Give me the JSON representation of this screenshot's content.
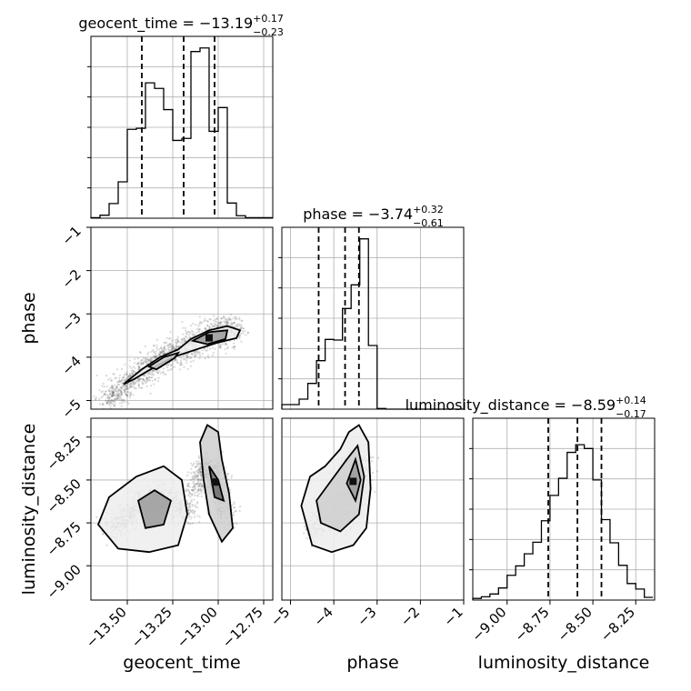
{
  "chart_data": {
    "type": "corner",
    "grid": true,
    "parameters": [
      "geocent_time",
      "phase",
      "luminosity_distance"
    ],
    "axes": {
      "geocent_time": {
        "range": [
          -13.7,
          -12.7
        ],
        "ticks": [
          -13.5,
          -13.25,
          -13.0,
          -12.75
        ],
        "tick_labels": [
          "−13.50",
          "−13.25",
          "−13.00",
          "−12.75"
        ],
        "xlabel": "geocent_time"
      },
      "phase": {
        "range": [
          -5.2,
          -1.0
        ],
        "ticks": [
          -5,
          -4,
          -3,
          -2,
          -1
        ],
        "tick_labels": [
          "−5",
          "−4",
          "−3",
          "−2",
          "−1"
        ],
        "xlabel": "phase",
        "ylabel": "phase"
      },
      "luminosity_distance": {
        "range": [
          -9.2,
          -8.14
        ],
        "ticks": [
          -9.0,
          -8.75,
          -8.5,
          -8.25
        ],
        "tick_labels": [
          "−9.00",
          "−8.75",
          "−8.50",
          "−8.25"
        ],
        "xlabel": "luminosity_distance",
        "ylabel": "luminosity_distance"
      }
    },
    "diagonal": [
      {
        "param": "geocent_time",
        "title_main": "geocent_time = −13.19",
        "title_sup": "+0.17",
        "title_sub": "−0.23",
        "quantiles": [
          -13.42,
          -13.19,
          -13.02
        ],
        "bins": [
          -13.7,
          -13.65,
          -13.6,
          -13.55,
          -13.5,
          -13.45,
          -13.4,
          -13.35,
          -13.3,
          -13.25,
          -13.2,
          -13.15,
          -13.1,
          -13.05,
          -13.0,
          -12.95,
          -12.9,
          -12.85,
          -12.8,
          -12.75,
          -12.7
        ],
        "counts": [
          1,
          6,
          29,
          72,
          176,
          178,
          268,
          257,
          215,
          154,
          158,
          330,
          337,
          172,
          219,
          30,
          5,
          1,
          1,
          1
        ],
        "ymax": 360
      },
      {
        "param": "phase",
        "title_main": "phase = −3.74",
        "title_sup": "+0.32",
        "title_sub": "−0.61",
        "quantiles": [
          -4.35,
          -3.74,
          -3.42
        ],
        "bins": [
          -5.2,
          -5.0,
          -4.8,
          -4.6,
          -4.4,
          -4.2,
          -4.0,
          -3.8,
          -3.6,
          -3.4,
          -3.2,
          -3.0,
          -2.8,
          -2.6,
          -2.4,
          -2.2,
          -2.0,
          -1.8,
          -1.6,
          -1.4,
          -1.2,
          -1.0
        ],
        "counts": [
          15,
          15,
          33,
          85,
          160,
          230,
          228,
          332,
          410,
          562,
          210,
          2,
          0,
          0,
          0,
          0,
          0,
          0,
          0,
          0,
          0
        ],
        "ymax": 600
      },
      {
        "param": "luminosity_distance",
        "title_main": "luminosity_distance = −8.59",
        "title_sup": "+0.14",
        "title_sub": "−0.17",
        "quantiles": [
          -8.76,
          -8.59,
          -8.45
        ],
        "bins": [
          -9.2,
          -9.15,
          -9.1,
          -9.05,
          -9.0,
          -8.95,
          -8.9,
          -8.85,
          -8.8,
          -8.75,
          -8.7,
          -8.65,
          -8.6,
          -8.55,
          -8.5,
          -8.45,
          -8.4,
          -8.35,
          -8.3,
          -8.25,
          -8.2,
          -8.15
        ],
        "counts": [
          3,
          6,
          11,
          22,
          45,
          62,
          84,
          105,
          144,
          190,
          221,
          268,
          282,
          275,
          218,
          146,
          104,
          63,
          30,
          20,
          5
        ],
        "ymax": 330
      }
    ],
    "pairs": [
      {
        "x": "geocent_time",
        "y": "phase",
        "ridge": [
          [
            -13.62,
            -4.95
          ],
          [
            -13.55,
            -4.8
          ],
          [
            -13.48,
            -4.55
          ],
          [
            -13.4,
            -4.3
          ],
          [
            -13.32,
            -4.05
          ],
          [
            -13.25,
            -3.9
          ],
          [
            -13.18,
            -3.75
          ],
          [
            -13.1,
            -3.6
          ],
          [
            -13.02,
            -3.45
          ],
          [
            -12.95,
            -3.35
          ],
          [
            -12.88,
            -3.45
          ]
        ],
        "contours": [
          [
            [
              -13.52,
              -4.62
            ],
            [
              -13.42,
              -4.28
            ],
            [
              -13.32,
              -4.0
            ],
            [
              -13.22,
              -3.82
            ],
            [
              -13.15,
              -3.58
            ],
            [
              -13.05,
              -3.38
            ],
            [
              -12.95,
              -3.28
            ],
            [
              -12.88,
              -3.38
            ],
            [
              -12.9,
              -3.56
            ],
            [
              -13.0,
              -3.66
            ],
            [
              -13.12,
              -3.82
            ],
            [
              -13.25,
              -4.0
            ],
            [
              -13.36,
              -4.25
            ],
            [
              -13.46,
              -4.5
            ],
            [
              -13.52,
              -4.62
            ]
          ],
          [
            [
              -13.38,
              -4.22
            ],
            [
              -13.3,
              -4.0
            ],
            [
              -13.22,
              -3.9
            ],
            [
              -13.24,
              -4.02
            ],
            [
              -13.34,
              -4.28
            ],
            [
              -13.38,
              -4.22
            ]
          ],
          [
            [
              -13.14,
              -3.62
            ],
            [
              -13.05,
              -3.42
            ],
            [
              -12.95,
              -3.38
            ],
            [
              -12.96,
              -3.58
            ],
            [
              -13.06,
              -3.7
            ],
            [
              -13.14,
              -3.62
            ]
          ]
        ]
      },
      {
        "x": "geocent_time",
        "y": "luminosity_distance",
        "ridge": [
          [
            -13.6,
            -8.78
          ],
          [
            -13.5,
            -8.72
          ],
          [
            -13.42,
            -8.62
          ],
          [
            -13.3,
            -8.6
          ],
          [
            -13.2,
            -8.7
          ],
          [
            -13.1,
            -8.5
          ],
          [
            -13.05,
            -8.4
          ],
          [
            -13.0,
            -8.55
          ],
          [
            -12.95,
            -8.75
          ]
        ],
        "contours": [
          [
            [
              -13.66,
              -8.76
            ],
            [
              -13.6,
              -8.6
            ],
            [
              -13.45,
              -8.48
            ],
            [
              -13.3,
              -8.42
            ],
            [
              -13.2,
              -8.5
            ],
            [
              -13.17,
              -8.7
            ],
            [
              -13.22,
              -8.88
            ],
            [
              -13.38,
              -8.92
            ],
            [
              -13.55,
              -8.9
            ],
            [
              -13.66,
              -8.76
            ]
          ],
          [
            [
              -13.1,
              -8.28
            ],
            [
              -13.06,
              -8.18
            ],
            [
              -13.0,
              -8.22
            ],
            [
              -12.98,
              -8.38
            ],
            [
              -12.94,
              -8.58
            ],
            [
              -12.92,
              -8.78
            ],
            [
              -12.98,
              -8.86
            ],
            [
              -13.05,
              -8.7
            ],
            [
              -13.08,
              -8.5
            ],
            [
              -13.1,
              -8.28
            ]
          ],
          [
            [
              -13.44,
              -8.62
            ],
            [
              -13.35,
              -8.56
            ],
            [
              -13.26,
              -8.62
            ],
            [
              -13.3,
              -8.76
            ],
            [
              -13.4,
              -8.78
            ],
            [
              -13.44,
              -8.62
            ]
          ],
          [
            [
              -13.05,
              -8.42
            ],
            [
              -13.0,
              -8.5
            ],
            [
              -12.97,
              -8.62
            ],
            [
              -13.02,
              -8.6
            ],
            [
              -13.05,
              -8.42
            ]
          ]
        ]
      },
      {
        "x": "phase",
        "y": "luminosity_distance",
        "ridge": [
          [
            -4.5,
            -8.82
          ],
          [
            -4.2,
            -8.7
          ],
          [
            -3.9,
            -8.62
          ],
          [
            -3.7,
            -8.55
          ],
          [
            -3.55,
            -8.45
          ],
          [
            -3.45,
            -8.38
          ],
          [
            -3.38,
            -8.55
          ],
          [
            -3.55,
            -8.65
          ],
          [
            -3.9,
            -8.75
          ]
        ],
        "contours": [
          [
            [
              -4.75,
              -8.65
            ],
            [
              -4.55,
              -8.48
            ],
            [
              -4.2,
              -8.42
            ],
            [
              -3.85,
              -8.32
            ],
            [
              -3.65,
              -8.22
            ],
            [
              -3.42,
              -8.18
            ],
            [
              -3.2,
              -8.28
            ],
            [
              -3.15,
              -8.55
            ],
            [
              -3.25,
              -8.78
            ],
            [
              -3.55,
              -8.88
            ],
            [
              -4.05,
              -8.92
            ],
            [
              -4.5,
              -8.88
            ],
            [
              -4.75,
              -8.65
            ]
          ],
          [
            [
              -4.4,
              -8.62
            ],
            [
              -4.05,
              -8.5
            ],
            [
              -3.7,
              -8.38
            ],
            [
              -3.45,
              -8.3
            ],
            [
              -3.3,
              -8.48
            ],
            [
              -3.42,
              -8.7
            ],
            [
              -3.85,
              -8.8
            ],
            [
              -4.3,
              -8.75
            ],
            [
              -4.4,
              -8.62
            ]
          ],
          [
            [
              -3.7,
              -8.52
            ],
            [
              -3.5,
              -8.38
            ],
            [
              -3.38,
              -8.5
            ],
            [
              -3.5,
              -8.62
            ],
            [
              -3.7,
              -8.52
            ]
          ]
        ]
      }
    ]
  }
}
